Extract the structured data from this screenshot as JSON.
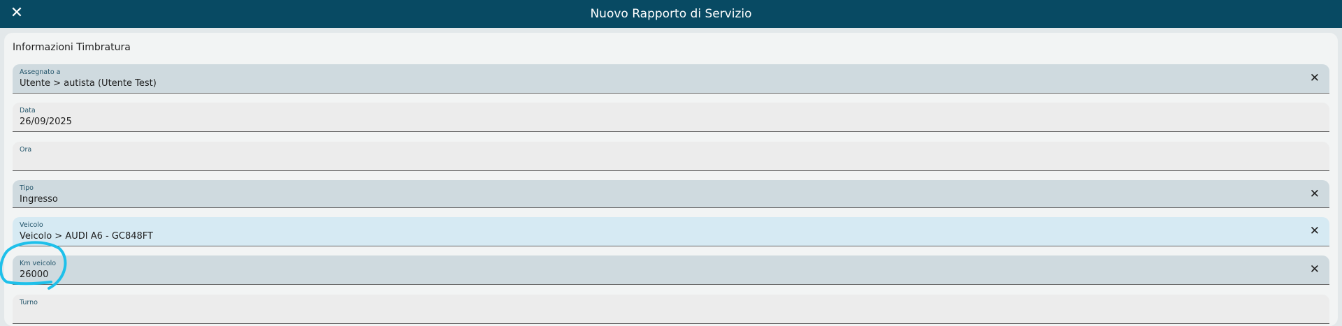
{
  "header": {
    "title": "Nuovo Rapporto di Servizio",
    "close_icon": "close-icon"
  },
  "section": {
    "title": "Informazioni Timbratura"
  },
  "fields": [
    {
      "label": "Assegnato a",
      "value": "Utente > autista (Utente Test)",
      "clearable": true
    },
    {
      "label": "Data",
      "value": "26/09/2025",
      "clearable": false
    },
    {
      "label": "Ora",
      "value": "",
      "clearable": false
    },
    {
      "label": "Tipo",
      "value": "Ingresso",
      "clearable": true
    },
    {
      "label": "Veicolo",
      "value": "Veicolo > AUDI A6 - GC848FT",
      "clearable": true
    },
    {
      "label": "Km veicolo",
      "value": "26000",
      "clearable": true
    },
    {
      "label": "Turno",
      "value": "",
      "clearable": false
    }
  ],
  "clear_glyph": "✕",
  "colors": {
    "header": "#084a63",
    "annotation": "#1ec0ea",
    "selected_field": "#d6eaf3"
  }
}
